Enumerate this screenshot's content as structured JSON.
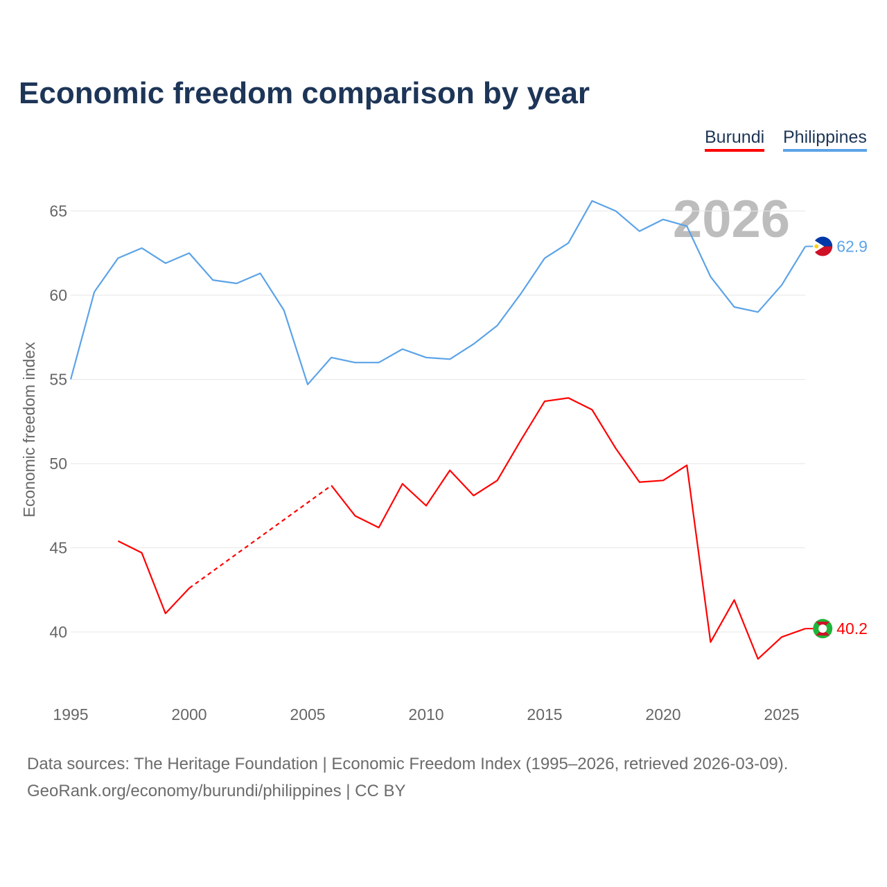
{
  "title": "Economic freedom comparison by year",
  "legend": [
    {
      "name": "Burundi",
      "color": "#ff0000"
    },
    {
      "name": "Philippines",
      "color": "#5ba3e8"
    }
  ],
  "year_watermark": "2026",
  "footer": {
    "line1": "Data sources: The Heritage Foundation | Economic Freedom Index (1995–2026, retrieved 2026-03-09).",
    "line2": "GeoRank.org/economy/burundi/philippines | CC BY"
  },
  "chart_data": {
    "type": "line",
    "title": "Economic freedom comparison by year",
    "xlabel": "",
    "ylabel": "Economic freedom index",
    "xlim": [
      1995,
      2026
    ],
    "ylim": [
      36.5,
      67
    ],
    "x_ticks": [
      1995,
      2000,
      2005,
      2010,
      2015,
      2020,
      2025
    ],
    "y_ticks": [
      40,
      45,
      50,
      55,
      60,
      65
    ],
    "grid": true,
    "legend_position": "top-right",
    "x": [
      1995,
      1996,
      1997,
      1998,
      1999,
      2000,
      2001,
      2002,
      2003,
      2004,
      2005,
      2006,
      2007,
      2008,
      2009,
      2010,
      2011,
      2012,
      2013,
      2014,
      2015,
      2016,
      2017,
      2018,
      2019,
      2020,
      2021,
      2022,
      2023,
      2024,
      2025,
      2026
    ],
    "series": [
      {
        "name": "Burundi",
        "color": "#ff0000",
        "end_label": "40.2",
        "values": [
          null,
          null,
          45.4,
          44.7,
          41.1,
          42.6,
          null,
          null,
          null,
          null,
          null,
          48.7,
          46.9,
          46.2,
          48.8,
          47.5,
          49.6,
          48.1,
          49.0,
          51.4,
          53.7,
          53.9,
          53.2,
          50.9,
          48.9,
          49.0,
          49.9,
          39.4,
          41.9,
          38.4,
          39.7,
          40.2
        ]
      },
      {
        "name": "Philippines",
        "color": "#5ba3e8",
        "end_label": "62.9",
        "values": [
          55.0,
          60.2,
          62.2,
          62.8,
          61.9,
          62.5,
          60.9,
          60.7,
          61.3,
          59.1,
          54.7,
          56.3,
          56.0,
          56.0,
          56.8,
          56.3,
          56.2,
          57.1,
          58.2,
          60.1,
          62.2,
          63.1,
          65.6,
          65.0,
          63.8,
          64.5,
          64.1,
          61.1,
          59.3,
          59.0,
          60.6,
          62.9
        ]
      }
    ]
  }
}
